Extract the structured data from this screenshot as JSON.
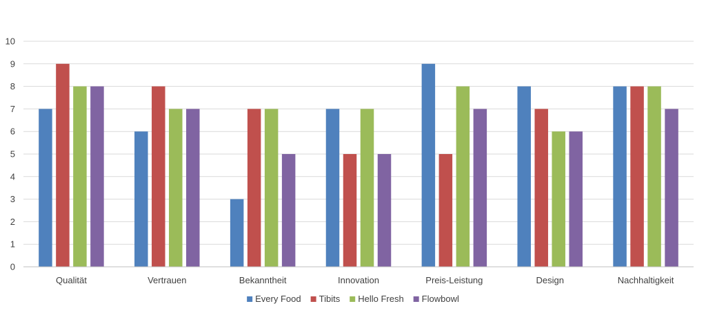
{
  "chart_data": {
    "type": "bar",
    "title": "",
    "xlabel": "",
    "ylabel": "",
    "ylim": [
      0,
      10
    ],
    "yticks": [
      0,
      1,
      2,
      3,
      4,
      5,
      6,
      7,
      8,
      9,
      10
    ],
    "grid": true,
    "legend_position": "bottom",
    "categories": [
      "Qualität",
      "Vertrauen",
      "Bekanntheit",
      "Innovation",
      "Preis-Leistung",
      "Design",
      "Nachhaltigkeit"
    ],
    "series": [
      {
        "name": "Every Food",
        "color": "#4F81BD",
        "values": [
          7,
          6,
          3,
          7,
          9,
          8,
          8
        ]
      },
      {
        "name": "Tibits",
        "color": "#C0504D",
        "values": [
          9,
          8,
          7,
          5,
          5,
          7,
          8
        ]
      },
      {
        "name": "Hello Fresh",
        "color": "#9BBB59",
        "values": [
          8,
          7,
          7,
          7,
          8,
          6,
          8
        ]
      },
      {
        "name": "Flowbowl",
        "color": "#8064A2",
        "values": [
          8,
          7,
          5,
          5,
          7,
          6,
          7
        ]
      }
    ]
  }
}
